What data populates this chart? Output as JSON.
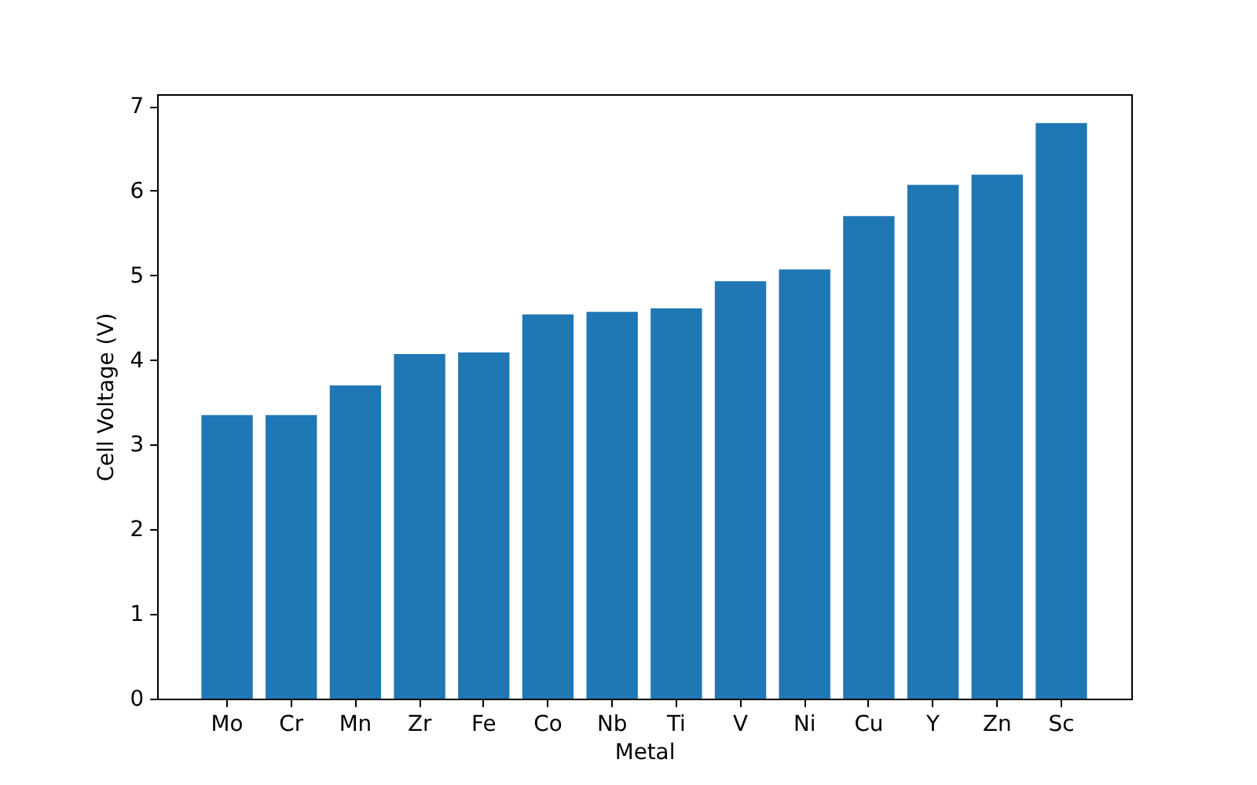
{
  "chart_data": {
    "type": "bar",
    "xlabel": "Metal",
    "ylabel": "Cell Voltage (V)",
    "categories": [
      "Mo",
      "Cr",
      "Mn",
      "Zr",
      "Fe",
      "Co",
      "Nb",
      "Ti",
      "V",
      "Ni",
      "Cu",
      "Y",
      "Zn",
      "Sc"
    ],
    "values": [
      3.35,
      3.35,
      3.7,
      4.07,
      4.09,
      4.54,
      4.57,
      4.61,
      4.93,
      5.07,
      5.7,
      6.07,
      6.19,
      6.8
    ],
    "color": "#1f77b4",
    "ylim": [
      0,
      7.14
    ],
    "yticks": [
      0,
      1,
      2,
      3,
      4,
      5,
      6,
      7
    ]
  }
}
